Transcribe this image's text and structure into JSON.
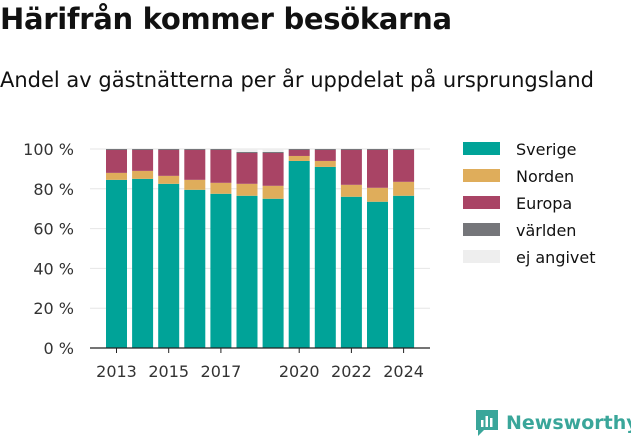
{
  "title": "Härifrån kommer besökarna",
  "subtitle": "Andel av gästnätterna per år uppdelat på ursprungsland",
  "brand": "Newsworthy",
  "chart_data": {
    "type": "bar",
    "stacked": true,
    "categories": [
      "2013",
      "2014",
      "2015",
      "2016",
      "2017",
      "2018",
      "2019",
      "2020",
      "2021",
      "2022",
      "2023",
      "2024"
    ],
    "x_tick_labels": [
      "2013",
      "2015",
      "2017",
      "2020",
      "2022",
      "2024"
    ],
    "y_tick_labels": [
      "0 %",
      "20 %",
      "40 %",
      "60 %",
      "80 %",
      "100 %"
    ],
    "ylim": [
      0,
      100
    ],
    "grid": true,
    "legend_position": "right",
    "series": [
      {
        "name": "Sverige",
        "color": "#00a398",
        "values": [
          84.5,
          85,
          82.5,
          79.5,
          77.5,
          76.5,
          75,
          94,
          91,
          76,
          73.5,
          76.5
        ]
      },
      {
        "name": "Norden",
        "color": "#dfad5b",
        "values": [
          3.5,
          4,
          4,
          5,
          5.5,
          6,
          6.5,
          2.5,
          3,
          6,
          7,
          7
        ]
      },
      {
        "name": "Europa",
        "color": "#a94465",
        "values": [
          11.5,
          10.5,
          13,
          15,
          16.5,
          15.5,
          16.5,
          3,
          5.5,
          17.5,
          19,
          16
        ]
      },
      {
        "name": "världen",
        "color": "#75767a",
        "values": [
          0.5,
          0.5,
          0.5,
          0.5,
          0.5,
          0.5,
          0.5,
          0.5,
          0.5,
          0.5,
          0.5,
          0.5
        ]
      },
      {
        "name": "ej angivet",
        "color": "#eeeeee",
        "values": [
          0,
          0,
          0,
          0,
          0,
          1.5,
          1.5,
          0,
          0,
          0,
          0,
          0
        ]
      }
    ]
  }
}
